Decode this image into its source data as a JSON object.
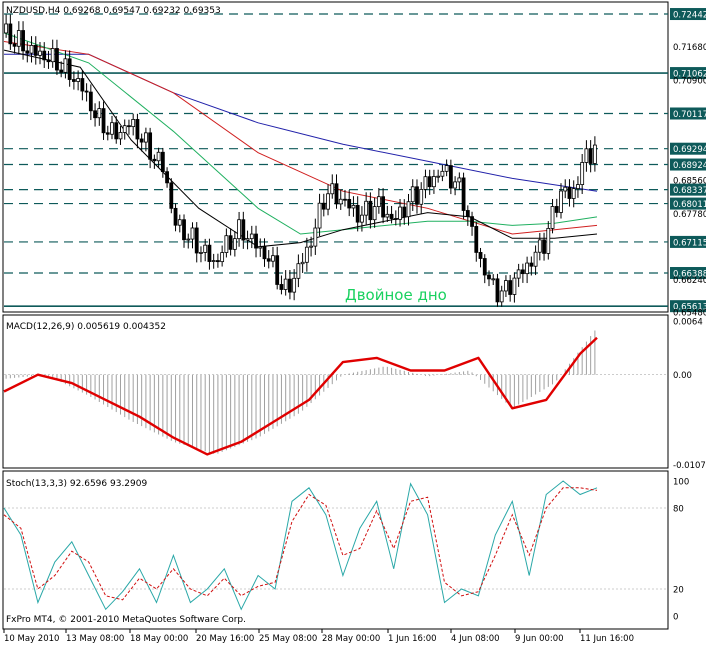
{
  "chart_data": [
    {
      "type": "candlestick",
      "symbol_line": "NZDUSD,H4  0.69268 0.69547 0.69232 0.69353",
      "annotation": "Двойное дно",
      "annotation_color": "#19d15f",
      "ylim": [
        0.655,
        0.727
      ],
      "y_ticks": [
        "0.72442",
        "0.71680",
        "0.71062",
        "0.70900",
        "0.70117",
        "0.69294",
        "0.68924",
        "0.68560",
        "0.68337",
        "0.68011",
        "0.67780",
        "0.67115",
        "0.66388",
        "0.66240",
        "0.65613",
        "0.65480"
      ],
      "y_tick_values": [
        0.72442,
        0.7168,
        0.71062,
        0.709,
        0.70117,
        0.69294,
        0.68924,
        0.6856,
        0.68337,
        0.68011,
        0.6778,
        0.67115,
        0.66388,
        0.6624,
        0.65613,
        0.6548
      ],
      "levels_dashed": [
        0.72442,
        0.70117,
        0.69294,
        0.68924,
        0.68337,
        0.68011,
        0.67115,
        0.66388
      ],
      "levels_solid": [
        0.71062,
        0.65613
      ],
      "close_path": [
        [
          0,
          0.72
        ],
        [
          6,
          0.716
        ],
        [
          12,
          0.7135
        ],
        [
          18,
          0.708
        ],
        [
          22,
          0.7
        ],
        [
          26,
          0.696
        ],
        [
          30,
          0.699
        ],
        [
          34,
          0.693
        ],
        [
          38,
          0.688
        ],
        [
          40,
          0.676
        ],
        [
          44,
          0.672
        ],
        [
          48,
          0.668
        ],
        [
          50,
          0.666
        ],
        [
          52,
          0.67
        ],
        [
          56,
          0.674
        ],
        [
          60,
          0.67
        ],
        [
          64,
          0.665
        ],
        [
          66,
          0.659
        ],
        [
          68,
          0.662
        ],
        [
          70,
          0.666
        ],
        [
          72,
          0.67
        ],
        [
          74,
          0.676
        ],
        [
          76,
          0.683
        ],
        [
          80,
          0.681
        ],
        [
          84,
          0.677
        ],
        [
          88,
          0.68
        ],
        [
          92,
          0.676
        ],
        [
          96,
          0.681
        ],
        [
          100,
          0.685
        ],
        [
          104,
          0.688
        ],
        [
          108,
          0.683
        ],
        [
          110,
          0.675
        ],
        [
          112,
          0.668
        ],
        [
          114,
          0.663
        ],
        [
          116,
          0.66
        ],
        [
          118,
          0.659
        ],
        [
          120,
          0.662
        ],
        [
          124,
          0.666
        ],
        [
          128,
          0.672
        ],
        [
          130,
          0.679
        ],
        [
          132,
          0.684
        ],
        [
          134,
          0.681
        ],
        [
          136,
          0.688
        ],
        [
          138,
          0.692
        ],
        [
          140,
          0.6935
        ]
      ],
      "moving_averages": [
        {
          "color": "#2222aa",
          "points": [
            [
              0,
              0.715
            ],
            [
              20,
              0.715
            ],
            [
              40,
              0.706
            ],
            [
              60,
              0.699
            ],
            [
              80,
              0.694
            ],
            [
              100,
              0.69
            ],
            [
              120,
              0.686
            ],
            [
              140,
              0.683
            ]
          ]
        },
        {
          "color": "#d02020",
          "points": [
            [
              0,
              0.718
            ],
            [
              20,
              0.715
            ],
            [
              40,
              0.706
            ],
            [
              60,
              0.692
            ],
            [
              80,
              0.683
            ],
            [
              100,
              0.679
            ],
            [
              110,
              0.676
            ],
            [
              120,
              0.673
            ],
            [
              130,
              0.674
            ],
            [
              140,
              0.675
            ]
          ]
        },
        {
          "color": "#20b060",
          "points": [
            [
              0,
              0.72
            ],
            [
              20,
              0.713
            ],
            [
              40,
              0.697
            ],
            [
              60,
              0.679
            ],
            [
              70,
              0.673
            ],
            [
              80,
              0.674
            ],
            [
              100,
              0.676
            ],
            [
              110,
              0.676
            ],
            [
              120,
              0.675
            ],
            [
              130,
              0.6755
            ],
            [
              140,
              0.677
            ]
          ]
        },
        {
          "color": "#000000",
          "points": [
            [
              0,
              0.716
            ],
            [
              18,
              0.712
            ],
            [
              30,
              0.695
            ],
            [
              46,
              0.679
            ],
            [
              60,
              0.67
            ],
            [
              70,
              0.671
            ],
            [
              80,
              0.674
            ],
            [
              100,
              0.678
            ],
            [
              110,
              0.677
            ],
            [
              120,
              0.672
            ],
            [
              130,
              0.672
            ],
            [
              140,
              0.673
            ]
          ]
        }
      ]
    },
    {
      "type": "bar-line",
      "label": "MACD(12,26,9) 0.005619 0.004352",
      "y_ticks": [
        "0.0064",
        "0.00",
        "-0.01073"
      ],
      "y_tick_values": [
        0.0064,
        0.0,
        -0.01073
      ],
      "ylim": [
        -0.011,
        0.007
      ],
      "histogram": [
        [
          0,
          -0.0005
        ],
        [
          10,
          0.0
        ],
        [
          20,
          -0.0025
        ],
        [
          30,
          -0.0055
        ],
        [
          40,
          -0.008
        ],
        [
          50,
          -0.0095
        ],
        [
          60,
          -0.0075
        ],
        [
          70,
          -0.0045
        ],
        [
          80,
          0.0
        ],
        [
          90,
          0.001
        ],
        [
          100,
          -0.0002
        ],
        [
          110,
          0.0005
        ],
        [
          120,
          -0.004
        ],
        [
          130,
          -0.001
        ],
        [
          140,
          0.0056
        ]
      ],
      "signal": [
        [
          0,
          -0.002
        ],
        [
          8,
          0.0
        ],
        [
          16,
          -0.001
        ],
        [
          24,
          -0.003
        ],
        [
          32,
          -0.005
        ],
        [
          40,
          -0.0075
        ],
        [
          48,
          -0.0095
        ],
        [
          56,
          -0.008
        ],
        [
          64,
          -0.0055
        ],
        [
          72,
          -0.003
        ],
        [
          80,
          0.0015
        ],
        [
          88,
          0.002
        ],
        [
          96,
          0.0005
        ],
        [
          104,
          0.0005
        ],
        [
          112,
          0.002
        ],
        [
          120,
          -0.004
        ],
        [
          128,
          -0.003
        ],
        [
          136,
          0.0025
        ],
        [
          140,
          0.0044
        ]
      ]
    },
    {
      "type": "line",
      "label": "Stoch(13,3,3) 92.6596 93.2909",
      "y_ticks": [
        "100",
        "80",
        "20",
        "0"
      ],
      "y_tick_values": [
        100,
        80,
        20,
        0
      ],
      "ylim": [
        0,
        100
      ],
      "main": [
        [
          0,
          80
        ],
        [
          4,
          60
        ],
        [
          6,
          35
        ],
        [
          8,
          10
        ],
        [
          12,
          40
        ],
        [
          16,
          55
        ],
        [
          20,
          30
        ],
        [
          24,
          5
        ],
        [
          28,
          18
        ],
        [
          32,
          35
        ],
        [
          36,
          10
        ],
        [
          40,
          45
        ],
        [
          44,
          10
        ],
        [
          48,
          20
        ],
        [
          52,
          35
        ],
        [
          56,
          5
        ],
        [
          60,
          30
        ],
        [
          64,
          20
        ],
        [
          68,
          85
        ],
        [
          72,
          95
        ],
        [
          76,
          75
        ],
        [
          80,
          30
        ],
        [
          84,
          65
        ],
        [
          88,
          85
        ],
        [
          92,
          35
        ],
        [
          96,
          98
        ],
        [
          100,
          75
        ],
        [
          104,
          10
        ],
        [
          108,
          20
        ],
        [
          112,
          15
        ],
        [
          116,
          60
        ],
        [
          120,
          85
        ],
        [
          124,
          30
        ],
        [
          128,
          90
        ],
        [
          132,
          100
        ],
        [
          136,
          90
        ],
        [
          140,
          95
        ]
      ],
      "signal": [
        [
          0,
          75
        ],
        [
          4,
          65
        ],
        [
          6,
          42
        ],
        [
          8,
          20
        ],
        [
          12,
          30
        ],
        [
          16,
          48
        ],
        [
          20,
          40
        ],
        [
          24,
          15
        ],
        [
          28,
          12
        ],
        [
          32,
          28
        ],
        [
          36,
          20
        ],
        [
          40,
          35
        ],
        [
          44,
          20
        ],
        [
          48,
          15
        ],
        [
          52,
          28
        ],
        [
          56,
          15
        ],
        [
          60,
          22
        ],
        [
          64,
          25
        ],
        [
          68,
          70
        ],
        [
          72,
          90
        ],
        [
          76,
          82
        ],
        [
          80,
          45
        ],
        [
          84,
          50
        ],
        [
          88,
          78
        ],
        [
          92,
          50
        ],
        [
          96,
          85
        ],
        [
          100,
          88
        ],
        [
          104,
          25
        ],
        [
          108,
          15
        ],
        [
          112,
          18
        ],
        [
          116,
          45
        ],
        [
          120,
          75
        ],
        [
          124,
          45
        ],
        [
          128,
          80
        ],
        [
          132,
          95
        ],
        [
          136,
          95
        ],
        [
          140,
          93
        ]
      ]
    }
  ],
  "x_labels": [
    "10 May 2010",
    "13 May 08:00",
    "18 May 00:00",
    "20 May 16:00",
    "25 May 08:00",
    "28 May 00:00",
    "1 Jun 16:00",
    "4 Jun 08:00",
    "9 Jun 00:00",
    "11 Jun 16:00"
  ],
  "copyright": "FxPro MT4, © 2001-2010 MetaQuotes Software Corp."
}
